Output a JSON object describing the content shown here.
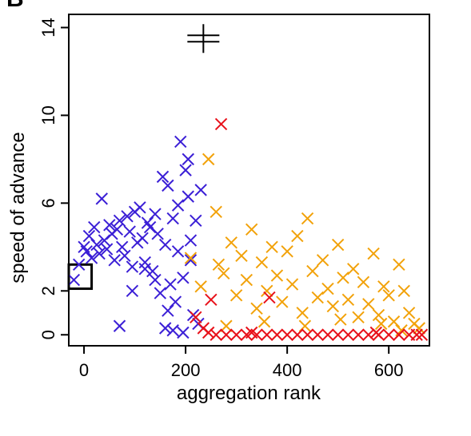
{
  "panel_label": "B",
  "chart_data": {
    "type": "scatter",
    "title": "",
    "xlabel": "aggregation rank",
    "ylabel": "speed of advance",
    "xlim": [
      -30,
      680
    ],
    "ylim": [
      -0.5,
      14.6
    ],
    "xticks": [
      0,
      200,
      400,
      600
    ],
    "xtick_labels": [
      "0",
      "200",
      "400",
      "600"
    ],
    "yticks": [
      0,
      2,
      6,
      10,
      14
    ],
    "ytick_labels": [
      "0",
      "2",
      "6",
      "10",
      "14"
    ],
    "grid": false,
    "legend": "none",
    "marker": "x",
    "series": [
      {
        "color": "#3b1fd6",
        "points": [
          [
            -20,
            2.5
          ],
          [
            -10,
            3.2
          ],
          [
            0,
            4.0
          ],
          [
            5,
            3.8
          ],
          [
            10,
            4.5
          ],
          [
            15,
            3.5
          ],
          [
            20,
            4.9
          ],
          [
            25,
            4.1
          ],
          [
            30,
            3.7
          ],
          [
            35,
            6.2
          ],
          [
            40,
            4.3
          ],
          [
            45,
            3.9
          ],
          [
            50,
            5.0
          ],
          [
            55,
            4.6
          ],
          [
            60,
            3.4
          ],
          [
            65,
            4.8
          ],
          [
            70,
            5.2
          ],
          [
            75,
            4.0
          ],
          [
            80,
            3.6
          ],
          [
            85,
            5.4
          ],
          [
            90,
            4.7
          ],
          [
            95,
            3.1
          ],
          [
            100,
            5.6
          ],
          [
            105,
            4.2
          ],
          [
            110,
            5.8
          ],
          [
            115,
            4.4
          ],
          [
            120,
            3.3
          ],
          [
            125,
            5.1
          ],
          [
            130,
            4.9
          ],
          [
            135,
            2.9
          ],
          [
            140,
            5.5
          ],
          [
            145,
            4.6
          ],
          [
            150,
            1.9
          ],
          [
            155,
            7.2
          ],
          [
            160,
            4.1
          ],
          [
            165,
            6.8
          ],
          [
            170,
            2.3
          ],
          [
            175,
            5.3
          ],
          [
            180,
            1.5
          ],
          [
            185,
            3.8
          ],
          [
            190,
            8.8
          ],
          [
            195,
            2.6
          ],
          [
            200,
            7.5
          ],
          [
            205,
            6.3
          ],
          [
            210,
            3.4
          ],
          [
            215,
            0.9
          ],
          [
            220,
            5.2
          ],
          [
            225,
            0.5
          ],
          [
            230,
            6.6
          ],
          [
            160,
            0.3
          ],
          [
            175,
            0.2
          ],
          [
            70,
            0.4
          ],
          [
            120,
            3.0
          ],
          [
            140,
            2.5
          ],
          [
            195,
            0.1
          ],
          [
            185,
            5.9
          ],
          [
            205,
            8.0
          ],
          [
            210,
            4.3
          ],
          [
            95,
            2.0
          ],
          [
            165,
            1.1
          ]
        ]
      },
      {
        "color": "#f2a20a",
        "points": [
          [
            210,
            3.5
          ],
          [
            230,
            2.2
          ],
          [
            245,
            8.0
          ],
          [
            260,
            5.6
          ],
          [
            265,
            3.2
          ],
          [
            275,
            2.8
          ],
          [
            290,
            4.2
          ],
          [
            300,
            1.8
          ],
          [
            310,
            3.6
          ],
          [
            320,
            2.5
          ],
          [
            330,
            4.8
          ],
          [
            340,
            1.2
          ],
          [
            350,
            3.3
          ],
          [
            360,
            2.0
          ],
          [
            370,
            4.0
          ],
          [
            380,
            2.7
          ],
          [
            390,
            1.5
          ],
          [
            400,
            3.8
          ],
          [
            410,
            2.3
          ],
          [
            420,
            4.5
          ],
          [
            430,
            1.0
          ],
          [
            440,
            5.3
          ],
          [
            450,
            2.9
          ],
          [
            460,
            1.7
          ],
          [
            470,
            3.4
          ],
          [
            480,
            2.1
          ],
          [
            490,
            1.3
          ],
          [
            500,
            4.1
          ],
          [
            510,
            2.6
          ],
          [
            520,
            1.6
          ],
          [
            530,
            3.0
          ],
          [
            540,
            0.8
          ],
          [
            550,
            2.4
          ],
          [
            560,
            1.4
          ],
          [
            570,
            3.7
          ],
          [
            580,
            0.9
          ],
          [
            590,
            2.2
          ],
          [
            600,
            1.8
          ],
          [
            610,
            0.6
          ],
          [
            620,
            3.2
          ],
          [
            630,
            2.0
          ],
          [
            640,
            1.0
          ],
          [
            650,
            0.5
          ],
          [
            660,
            0.3
          ],
          [
            280,
            0.4
          ],
          [
            355,
            0.6
          ],
          [
            435,
            0.4
          ],
          [
            505,
            0.7
          ],
          [
            585,
            0.5
          ],
          [
            625,
            0.2
          ]
        ]
      },
      {
        "color": "#e8121b",
        "points": [
          [
            220,
            0.8
          ],
          [
            235,
            0.3
          ],
          [
            250,
            1.6
          ],
          [
            270,
            9.6
          ],
          [
            260,
            0.0
          ],
          [
            280,
            0.0
          ],
          [
            300,
            0.0
          ],
          [
            320,
            0.0
          ],
          [
            340,
            0.0
          ],
          [
            360,
            0.0
          ],
          [
            365,
            1.7
          ],
          [
            380,
            0.0
          ],
          [
            400,
            0.0
          ],
          [
            420,
            0.0
          ],
          [
            440,
            0.0
          ],
          [
            460,
            0.0
          ],
          [
            480,
            0.0
          ],
          [
            500,
            0.0
          ],
          [
            520,
            0.0
          ],
          [
            540,
            0.0
          ],
          [
            560,
            0.0
          ],
          [
            580,
            0.0
          ],
          [
            600,
            0.0
          ],
          [
            620,
            0.0
          ],
          [
            640,
            0.0
          ],
          [
            655,
            0.0
          ],
          [
            665,
            0.0
          ],
          [
            245,
            0.1
          ],
          [
            330,
            0.1
          ],
          [
            575,
            0.1
          ]
        ]
      },
      {
        "color": "#000000",
        "marker": "cross",
        "points": [
          [
            235,
            13.5
          ]
        ]
      }
    ],
    "annotations": [
      {
        "type": "rect",
        "x0": -35,
        "x1": 15,
        "y0": 2.1,
        "y1": 3.2
      }
    ]
  }
}
